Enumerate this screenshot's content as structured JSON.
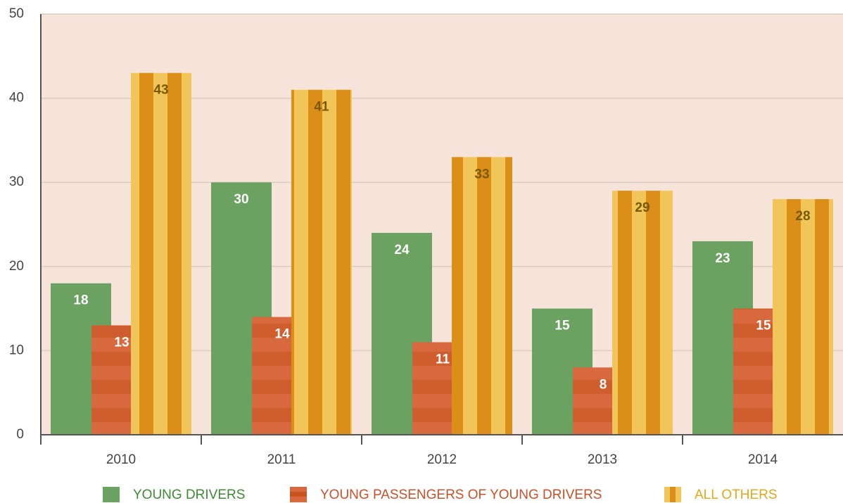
{
  "chart_data": {
    "type": "bar",
    "categories": [
      "2010",
      "2011",
      "2012",
      "2013",
      "2014"
    ],
    "series": [
      {
        "name": "YOUNG DRIVERS",
        "color": "#6ba262",
        "values": [
          18,
          30,
          24,
          15,
          23
        ]
      },
      {
        "name": "YOUNG PASSENGERS OF YOUNG DRIVERS",
        "color": "#d8693f",
        "values": [
          13,
          14,
          11,
          8,
          15
        ]
      },
      {
        "name": "ALL OTHERS",
        "color": "#f2c55a",
        "values": [
          43,
          41,
          33,
          29,
          28
        ]
      }
    ],
    "ylim": [
      0,
      50
    ],
    "yticks": [
      0,
      10,
      20,
      30,
      40,
      50
    ],
    "grid": true
  }
}
